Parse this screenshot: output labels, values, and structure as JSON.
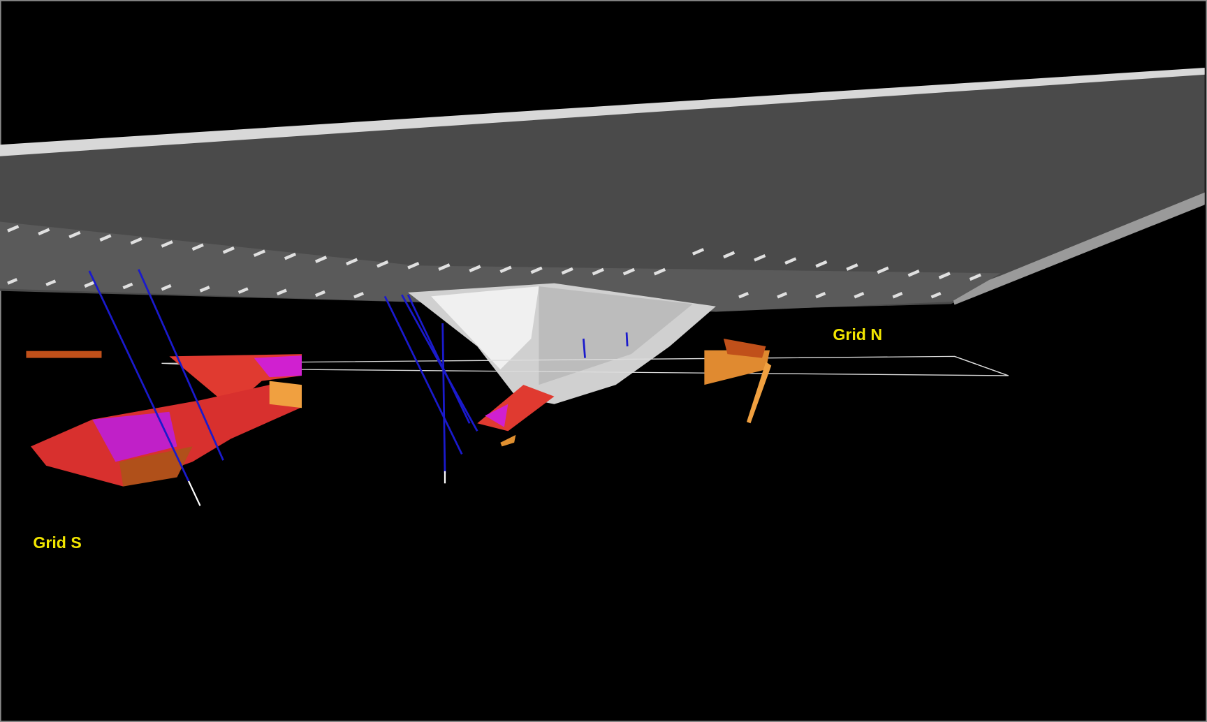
{
  "labels": {
    "grid_n": "Grid N",
    "grid_s": "Grid S"
  }
}
